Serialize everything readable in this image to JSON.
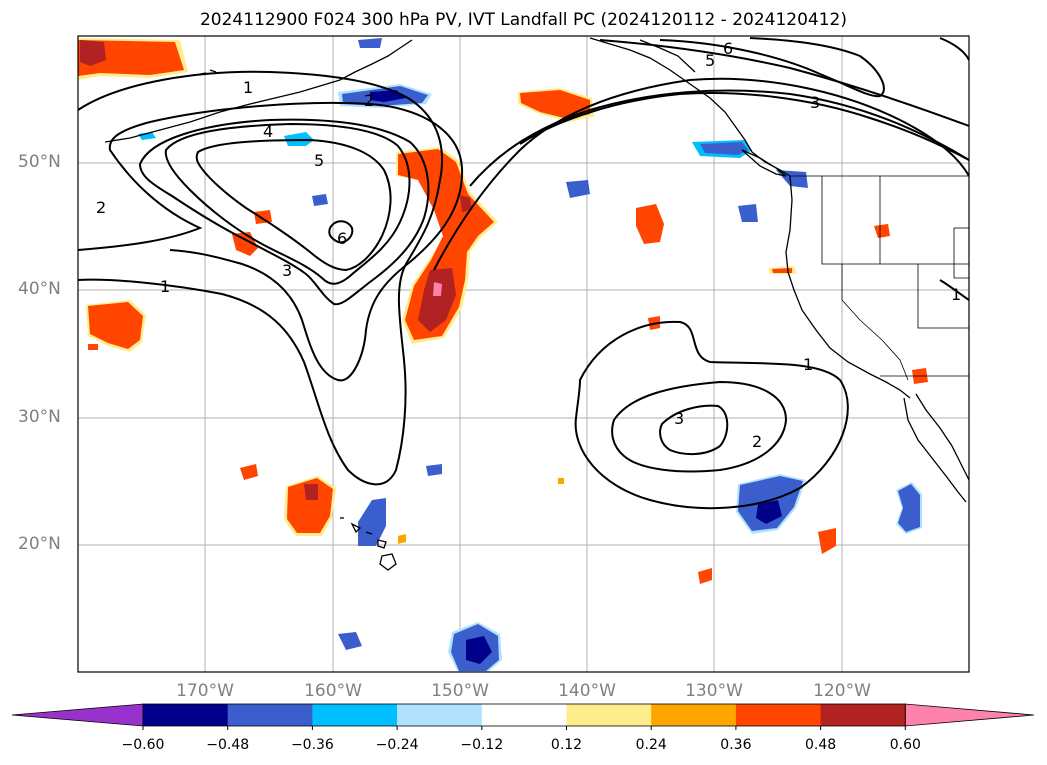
{
  "title": "2024112900 F024 300 hPa PV, IVT Landfall PC (2024120112 - 2024120412)",
  "lat_labels": [
    "50°N",
    "40°N",
    "30°N",
    "20°N"
  ],
  "lon_labels": [
    "170°W",
    "160°W",
    "150°W",
    "140°W",
    "130°W",
    "120°W"
  ],
  "contour_labels": [
    "1",
    "2",
    "3",
    "4",
    "5",
    "6",
    "1",
    "2",
    "3",
    "5",
    "6",
    "1",
    "2",
    "3",
    "1"
  ],
  "colorbar": {
    "tick_labels": [
      "−0.60",
      "−0.48",
      "−0.36",
      "−0.24",
      "−0.12",
      "0.12",
      "0.24",
      "0.36",
      "0.48",
      "0.60"
    ],
    "colors": [
      "#9932cc",
      "#00008b",
      "#3a5fcd",
      "#00bfff",
      "#b0e2ff",
      "#ffffff",
      "#ffec8b",
      "#ffa500",
      "#ff4500",
      "#b22222",
      "#ff82ab"
    ]
  },
  "colors": {
    "land_outline": "#000000",
    "grid": "#b0b0b0",
    "contour": "#000000"
  }
}
